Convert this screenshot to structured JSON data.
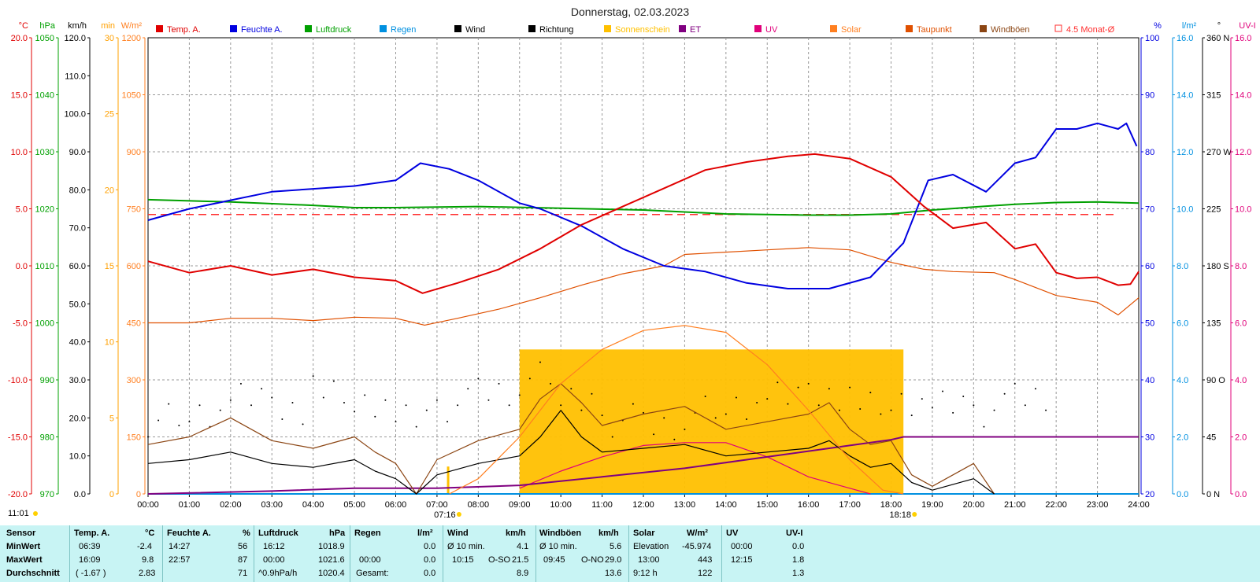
{
  "title": "Donnerstag, 02.03.2023",
  "corner_time": "11:01",
  "colors": {
    "temp": "#e00000",
    "humidity": "#0000e0",
    "pressure": "#00a000",
    "rain": "#0090e0",
    "wind": "#000000",
    "direction": "#000000",
    "sunshine": "#ffc000",
    "et": "#800080",
    "uv": "#e0007a",
    "solar": "#ff7f20",
    "dewpoint": "#e05000",
    "gusts": "#8b4513",
    "avg": "#ff3030"
  },
  "chart_data": {
    "type": "line",
    "x_unit": "hour",
    "x_range": [
      0,
      24
    ],
    "x_ticks": [
      "00:00",
      "01:00",
      "02:00",
      "03:00",
      "04:00",
      "05:00",
      "06:00",
      "07:00",
      "08:00",
      "09:00",
      "10:00",
      "11:00",
      "12:00",
      "13:00",
      "14:00",
      "15:00",
      "16:00",
      "17:00",
      "18:00",
      "19:00",
      "20:00",
      "21:00",
      "22:00",
      "23:00",
      "24:00"
    ],
    "sunrise": "07:16",
    "sunset": "18:18",
    "left_axes": [
      {
        "unit": "°C",
        "color": "#e00000",
        "range": [
          -20,
          20
        ],
        "ticks": [
          "20.0",
          "15.0",
          "10.0",
          "5.0",
          "0.0",
          "-5.0",
          "-10.0",
          "-15.0",
          "-20.0"
        ]
      },
      {
        "unit": "hPa",
        "color": "#00a000",
        "range": [
          970,
          1050
        ],
        "ticks": [
          "1050",
          "1040",
          "1030",
          "1020",
          "1010",
          "1000",
          "990",
          "980",
          "970"
        ]
      },
      {
        "unit": "km/h",
        "color": "#000000",
        "range": [
          0,
          120
        ],
        "ticks": [
          "120.0",
          "110.0",
          "100.0",
          "90.0",
          "80.0",
          "70.0",
          "60.0",
          "50.0",
          "40.0",
          "30.0",
          "20.0",
          "10.0",
          "0.0"
        ]
      },
      {
        "unit": "min",
        "color": "#ffa000",
        "range": [
          0,
          30
        ],
        "ticks": [
          "30",
          "25",
          "20",
          "15",
          "10",
          "5",
          "0"
        ]
      },
      {
        "unit": "W/m²",
        "color": "#ff7f20",
        "range": [
          0,
          1200
        ],
        "ticks": [
          "1200",
          "1050",
          "900",
          "750",
          "600",
          "450",
          "300",
          "150",
          "0"
        ]
      }
    ],
    "right_axes": [
      {
        "unit": "%",
        "color": "#0000e0",
        "range": [
          20,
          100
        ],
        "ticks": [
          "100",
          "90",
          "80",
          "70",
          "60",
          "50",
          "40",
          "30",
          "20"
        ]
      },
      {
        "unit": "l/m²",
        "color": "#0090e0",
        "range": [
          0,
          16
        ],
        "ticks": [
          "16.0",
          "14.0",
          "12.0",
          "10.0",
          "8.0",
          "6.0",
          "4.0",
          "2.0",
          "0.0"
        ]
      },
      {
        "unit": "°",
        "color": "#000000",
        "range": [
          0,
          360
        ],
        "ticks": [
          "360 N",
          "315",
          "270 W",
          "225",
          "180 S",
          "135",
          "90 O",
          "45",
          "0 N"
        ]
      },
      {
        "unit": "UV-I",
        "color": "#e0007a",
        "range": [
          0,
          16
        ],
        "ticks": [
          "16.0",
          "14.0",
          "12.0",
          "10.0",
          "8.0",
          "6.0",
          "4.0",
          "2.0",
          "0.0"
        ]
      }
    ],
    "legend": [
      {
        "label": "Temp. A.",
        "color": "#e00000"
      },
      {
        "label": "Feuchte A.",
        "color": "#0000e0"
      },
      {
        "label": "Luftdruck",
        "color": "#00a000"
      },
      {
        "label": "Regen",
        "color": "#0090e0"
      },
      {
        "label": "Wind",
        "color": "#000000"
      },
      {
        "label": "Richtung",
        "color": "#000000"
      },
      {
        "label": "Sonnenschein",
        "color": "#ffc000"
      },
      {
        "label": "ET",
        "color": "#800080"
      },
      {
        "label": "UV",
        "color": "#e0007a"
      },
      {
        "label": "Solar",
        "color": "#ff7f20"
      },
      {
        "label": "Taupunkt",
        "color": "#e05000"
      },
      {
        "label": "Windböen",
        "color": "#8b4513"
      },
      {
        "label": "4.5 Monat-Ø",
        "color": "#ff3030"
      }
    ],
    "temp_avg_line": 4.5,
    "series": [
      {
        "name": "Temp. A.",
        "axis": "°C",
        "x": [
          0,
          1,
          2,
          3,
          4,
          5,
          6,
          6.65,
          7.5,
          8.5,
          9.5,
          10.5,
          11.5,
          12.5,
          13.5,
          14.5,
          15.5,
          16.15,
          17,
          18,
          18.8,
          19.5,
          20.3,
          21,
          21.5,
          22,
          22.5,
          23,
          23.5,
          23.8,
          24
        ],
        "y": [
          0.4,
          -0.6,
          0,
          -0.8,
          -0.3,
          -1.0,
          -1.3,
          -2.4,
          -1.5,
          -0.3,
          1.5,
          3.6,
          5.2,
          6.8,
          8.4,
          9.1,
          9.6,
          9.8,
          9.4,
          7.8,
          5.2,
          3.3,
          3.8,
          1.5,
          1.9,
          -0.6,
          -1.1,
          -1.0,
          -1.7,
          -1.6,
          -0.5
        ]
      },
      {
        "name": "Feuchte A.",
        "axis": "%",
        "x": [
          0,
          1,
          2,
          3,
          4,
          5,
          6,
          6.6,
          7.3,
          8,
          9,
          9.5,
          10.5,
          11.5,
          12.5,
          13.5,
          14.5,
          15.5,
          16.5,
          17.5,
          18.3,
          18.9,
          19.5,
          20.3,
          21,
          21.5,
          22,
          22.5,
          23,
          23.5,
          23.7,
          23.95
        ],
        "y": [
          68,
          70,
          71.5,
          73,
          73.5,
          74,
          75,
          78,
          77,
          75,
          71,
          70,
          67,
          63,
          60,
          59,
          57,
          56,
          56,
          58,
          64,
          75,
          76,
          73,
          78,
          79,
          84,
          84,
          85,
          84,
          85,
          81
        ]
      },
      {
        "name": "Luftdruck",
        "axis": "hPa",
        "x": [
          0,
          2,
          4,
          5,
          6,
          8,
          10,
          12,
          14,
          16,
          17,
          18,
          19,
          20,
          21,
          22,
          23,
          24
        ],
        "y": [
          1021.6,
          1021.2,
          1020.6,
          1020.2,
          1020.2,
          1020.4,
          1020.1,
          1019.8,
          1019.1,
          1018.9,
          1018.9,
          1019.1,
          1019.8,
          1020.3,
          1020.8,
          1021.1,
          1021.2,
          1021.0
        ]
      },
      {
        "name": "Taupunkt",
        "axis": "°C",
        "x": [
          0,
          1,
          2,
          3,
          4,
          5,
          6,
          6.7,
          7.5,
          8.5,
          9.5,
          10.5,
          11.5,
          12.5,
          13,
          14,
          15,
          16,
          17,
          18,
          18.8,
          19.5,
          20.5,
          21,
          22,
          23,
          23.5,
          24
        ],
        "y": [
          -5,
          -5,
          -4.6,
          -4.6,
          -4.8,
          -4.5,
          -4.6,
          -5.2,
          -4.6,
          -3.8,
          -2.8,
          -1.7,
          -0.7,
          0,
          1,
          1.2,
          1.4,
          1.6,
          1.4,
          0.3,
          -0.3,
          -0.5,
          -0.6,
          -1.2,
          -2.6,
          -3.2,
          -4.3,
          -2.8
        ]
      },
      {
        "name": "Solar",
        "axis": "W/m²",
        "x": [
          7.3,
          8,
          9,
          10,
          11,
          12,
          13,
          14,
          15,
          16,
          17,
          17.8,
          18.3
        ],
        "y": [
          0,
          40,
          150,
          290,
          380,
          430,
          443,
          425,
          340,
          220,
          90,
          10,
          0
        ]
      },
      {
        "name": "Sonnenschein",
        "axis": "min",
        "x": [
          9,
          18.3
        ],
        "y": [
          9.5,
          9.5
        ]
      },
      {
        "name": "ET",
        "axis": "l/m²",
        "x": [
          0,
          3,
          5,
          7,
          9,
          11,
          13,
          15,
          17,
          18,
          18.3,
          24
        ],
        "y": [
          0,
          0.1,
          0.2,
          0.2,
          0.3,
          0.6,
          0.9,
          1.3,
          1.7,
          1.9,
          2.0,
          2.0
        ]
      },
      {
        "name": "UV",
        "axis": "UV-I",
        "x": [
          9,
          10,
          11,
          12,
          13,
          14,
          15,
          16,
          17,
          17.5
        ],
        "y": [
          0.2,
          0.8,
          1.3,
          1.7,
          1.8,
          1.8,
          1.3,
          0.6,
          0.2,
          0
        ]
      },
      {
        "name": "Wind",
        "axis": "km/h",
        "x": [
          0,
          1,
          2,
          3,
          4,
          5,
          5.5,
          6,
          6.5,
          7,
          8,
          9,
          9.5,
          10,
          10.5,
          11,
          12,
          13,
          14,
          15,
          16,
          16.5,
          17,
          17.5,
          18,
          18.5,
          19,
          20,
          20.5
        ],
        "y": [
          8,
          9,
          11,
          8,
          7,
          9,
          6,
          4,
          0,
          5,
          8,
          10,
          15,
          22,
          15,
          11,
          12,
          13,
          10,
          11,
          12,
          14,
          10,
          7,
          8,
          3,
          1,
          4,
          0
        ]
      },
      {
        "name": "Windböen",
        "axis": "km/h",
        "x": [
          0,
          1,
          2,
          3,
          4,
          5,
          5.5,
          6,
          6.5,
          7,
          8,
          9,
          9.5,
          10,
          10.5,
          11,
          12,
          13,
          14,
          15,
          16,
          16.5,
          17,
          17.5,
          18,
          18.5,
          19,
          20,
          20.5
        ],
        "y": [
          13,
          15,
          20,
          14,
          12,
          15,
          11,
          8,
          0,
          9,
          14,
          17,
          25,
          29,
          24,
          18,
          21,
          23,
          17,
          19,
          21,
          24,
          17,
          13,
          14,
          5,
          2,
          8,
          0
        ]
      },
      {
        "name": "Richtung",
        "axis": "°",
        "x": [
          0,
          1,
          2,
          3,
          4,
          5,
          6,
          7,
          8,
          9,
          10,
          11,
          12,
          13,
          14,
          15,
          16,
          17,
          18,
          19,
          20,
          21
        ],
        "y": [
          60,
          65,
          75,
          70,
          80,
          75,
          60,
          70,
          80,
          90,
          75,
          60,
          55,
          65,
          70,
          75,
          80,
          70,
          75,
          70,
          65,
          75
        ]
      },
      {
        "name": "Regen",
        "axis": "l/m²",
        "x": [
          0,
          24
        ],
        "y": [
          0,
          0
        ]
      }
    ]
  },
  "stats": {
    "headers": {
      "sensor": "Sensor",
      "temp": "Temp. A.",
      "temp_unit": "°C",
      "hum": "Feuchte A.",
      "hum_unit": "%",
      "press": "Luftdruck",
      "press_unit": "hPa",
      "rain": "Regen",
      "rain_unit": "l/m²",
      "wind": "Wind",
      "wind_unit": "km/h",
      "gust": "Windböen",
      "gust_unit": "km/h",
      "solar": "Solar",
      "solar_unit": "W/m²",
      "uv": "UV",
      "uv_unit": "UV-I"
    },
    "row_labels": [
      "MinWert",
      "MaxWert",
      "Durchschnitt"
    ],
    "temp": {
      "min_time": "06:39",
      "min": "-2.4",
      "max_time": "16:09",
      "max": "9.8",
      "avg_note": "( -1.67 )",
      "avg": "2.83"
    },
    "hum": {
      "min_time": "14:27",
      "min": "56",
      "max_time": "22:57",
      "max": "87",
      "avg": "71"
    },
    "press": {
      "min_time": "16:12",
      "min": "1018.9",
      "max_time": "00:00",
      "max": "1021.6",
      "trend": "^0.9hPa/h",
      "avg": "1020.4"
    },
    "rain": {
      "max_time": "00:00",
      "max": "0.0",
      "min": "0.0",
      "total_label": "Gesamt:",
      "total": "0.0"
    },
    "wind": {
      "r1_label": "Ø 10 min.",
      "r1": "4.1",
      "r2_time": "10:15",
      "r2_dir": "O-SO",
      "r2": "21.5",
      "avg": "8.9"
    },
    "gust": {
      "r1_label": "Ø 10 min.",
      "r1": "5.6",
      "r2_time": "09:45",
      "r2_dir": "O-NO",
      "r2": "29.0",
      "avg": "13.6"
    },
    "solar": {
      "r1_label": "Elevation",
      "r1": "-45.974",
      "r2_time": "13:00",
      "r2": "443",
      "r3_label": "9:12 h",
      "r3": "122"
    },
    "uv": {
      "min_time": "00:00",
      "min": "0.0",
      "max_time": "12:15",
      "max": "1.8",
      "avg": "1.3"
    }
  }
}
